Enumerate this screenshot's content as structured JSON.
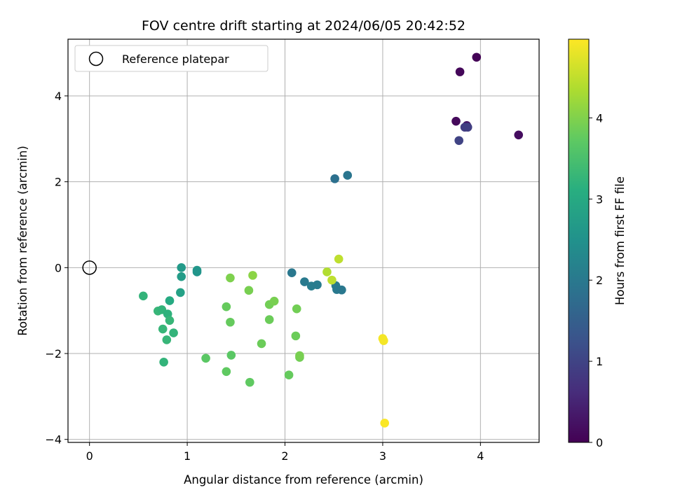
{
  "chart_data": {
    "type": "scatter",
    "title": "FOV centre drift starting at 2024/06/05 20:42:52",
    "xlabel": "Angular distance from reference (arcmin)",
    "ylabel": "Rotation from reference (arcmin)",
    "xlim": [
      -0.22,
      4.6
    ],
    "ylim": [
      -4.07,
      5.32
    ],
    "xticks": [
      0,
      1,
      2,
      3,
      4
    ],
    "yticks": [
      -4,
      -2,
      0,
      2,
      4
    ],
    "xtick_labels": [
      "0",
      "1",
      "2",
      "3",
      "4"
    ],
    "ytick_labels": [
      "−4",
      "−2",
      "0",
      "2",
      "4"
    ],
    "grid": true,
    "legend": {
      "position": "top-left",
      "label": "Reference platepar"
    },
    "reference_point": {
      "x": 0,
      "y": 0
    },
    "colorbar": {
      "label": "Hours from first FF file",
      "colormap": "viridis",
      "range": [
        0,
        4.97
      ],
      "ticks": [
        0,
        1,
        2,
        3,
        4
      ],
      "tick_labels": [
        "0",
        "1",
        "2",
        "3",
        "4"
      ]
    },
    "points": [
      {
        "x": 3.96,
        "y": 4.9,
        "t": 0.03
      },
      {
        "x": 3.79,
        "y": 4.56,
        "t": 0.08
      },
      {
        "x": 3.75,
        "y": 3.41,
        "t": 0.12
      },
      {
        "x": 3.86,
        "y": 3.31,
        "t": 0.3
      },
      {
        "x": 3.84,
        "y": 3.27,
        "t": 0.9
      },
      {
        "x": 3.87,
        "y": 3.27,
        "t": 0.92
      },
      {
        "x": 3.78,
        "y": 2.96,
        "t": 1.0
      },
      {
        "x": 4.39,
        "y": 3.09,
        "t": 0.18
      },
      {
        "x": 2.51,
        "y": 2.07,
        "t": 1.85
      },
      {
        "x": 2.64,
        "y": 2.15,
        "t": 1.95
      },
      {
        "x": 2.07,
        "y": -0.12,
        "t": 2.0
      },
      {
        "x": 2.2,
        "y": -0.33,
        "t": 2.05
      },
      {
        "x": 2.27,
        "y": -0.43,
        "t": 2.1
      },
      {
        "x": 2.33,
        "y": -0.4,
        "t": 2.08
      },
      {
        "x": 2.52,
        "y": -0.42,
        "t": 2.05
      },
      {
        "x": 2.53,
        "y": -0.51,
        "t": 2.03
      },
      {
        "x": 2.58,
        "y": -0.52,
        "t": 2.0
      },
      {
        "x": 2.55,
        "y": 0.2,
        "t": 4.5
      },
      {
        "x": 2.43,
        "y": -0.1,
        "t": 4.4
      },
      {
        "x": 2.48,
        "y": -0.29,
        "t": 4.5
      },
      {
        "x": 3.0,
        "y": -1.65,
        "t": 4.9
      },
      {
        "x": 3.01,
        "y": -1.7,
        "t": 4.9
      },
      {
        "x": 3.02,
        "y": -3.62,
        "t": 4.95
      },
      {
        "x": 0.94,
        "y": 0.0,
        "t": 2.7
      },
      {
        "x": 1.1,
        "y": -0.06,
        "t": 2.65
      },
      {
        "x": 1.1,
        "y": -0.1,
        "t": 2.6
      },
      {
        "x": 0.94,
        "y": -0.21,
        "t": 2.75
      },
      {
        "x": 0.93,
        "y": -0.58,
        "t": 2.85
      },
      {
        "x": 0.82,
        "y": -0.77,
        "t": 3.05
      },
      {
        "x": 0.55,
        "y": -0.66,
        "t": 3.25
      },
      {
        "x": 0.7,
        "y": -1.01,
        "t": 3.3
      },
      {
        "x": 0.74,
        "y": -0.98,
        "t": 3.25
      },
      {
        "x": 0.8,
        "y": -1.08,
        "t": 3.2
      },
      {
        "x": 0.82,
        "y": -1.23,
        "t": 3.3
      },
      {
        "x": 0.75,
        "y": -1.43,
        "t": 3.3
      },
      {
        "x": 0.86,
        "y": -1.52,
        "t": 3.25
      },
      {
        "x": 0.79,
        "y": -1.68,
        "t": 3.3
      },
      {
        "x": 0.76,
        "y": -2.2,
        "t": 3.25
      },
      {
        "x": 1.19,
        "y": -2.11,
        "t": 3.7
      },
      {
        "x": 1.4,
        "y": -2.42,
        "t": 3.75
      },
      {
        "x": 1.45,
        "y": -2.04,
        "t": 3.7
      },
      {
        "x": 1.64,
        "y": -2.67,
        "t": 3.75
      },
      {
        "x": 2.04,
        "y": -2.5,
        "t": 3.8
      },
      {
        "x": 2.15,
        "y": -2.09,
        "t": 3.9
      },
      {
        "x": 2.15,
        "y": -2.05,
        "t": 3.95
      },
      {
        "x": 1.76,
        "y": -1.77,
        "t": 3.85
      },
      {
        "x": 2.11,
        "y": -1.59,
        "t": 3.85
      },
      {
        "x": 1.44,
        "y": -1.27,
        "t": 3.8
      },
      {
        "x": 1.84,
        "y": -1.21,
        "t": 3.85
      },
      {
        "x": 1.4,
        "y": -0.91,
        "t": 3.8
      },
      {
        "x": 1.84,
        "y": -0.86,
        "t": 3.9
      },
      {
        "x": 1.89,
        "y": -0.78,
        "t": 3.95
      },
      {
        "x": 2.12,
        "y": -0.96,
        "t": 3.9
      },
      {
        "x": 1.63,
        "y": -0.53,
        "t": 3.95
      },
      {
        "x": 1.44,
        "y": -0.24,
        "t": 4.0
      },
      {
        "x": 1.67,
        "y": -0.18,
        "t": 4.1
      }
    ]
  }
}
